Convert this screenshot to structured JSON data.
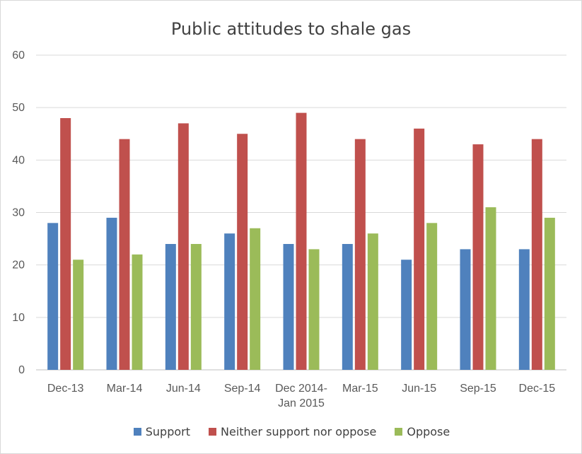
{
  "chart_data": {
    "type": "bar",
    "title": "Public attitudes to shale gas",
    "xlabel": "",
    "ylabel": "",
    "ylim": [
      0,
      60
    ],
    "yticks": [
      0,
      10,
      20,
      30,
      40,
      50,
      60
    ],
    "grid": true,
    "legend_position": "bottom",
    "categories": [
      "Dec-13",
      "Mar-14",
      "Jun-14",
      "Sep-14",
      "Dec 2014-Jan 2015",
      "Mar-15",
      "Jun-15",
      "Sep-15",
      "Dec-15"
    ],
    "series": [
      {
        "name": "Support",
        "color": "#4f81bd",
        "values": [
          28,
          29,
          24,
          26,
          24,
          24,
          21,
          23,
          23
        ]
      },
      {
        "name": "Neither support nor oppose",
        "color": "#c0504d",
        "values": [
          48,
          44,
          47,
          45,
          49,
          44,
          46,
          43,
          44
        ]
      },
      {
        "name": "Oppose",
        "color": "#9bbb59",
        "values": [
          21,
          22,
          24,
          27,
          23,
          26,
          28,
          31,
          29
        ]
      }
    ]
  }
}
